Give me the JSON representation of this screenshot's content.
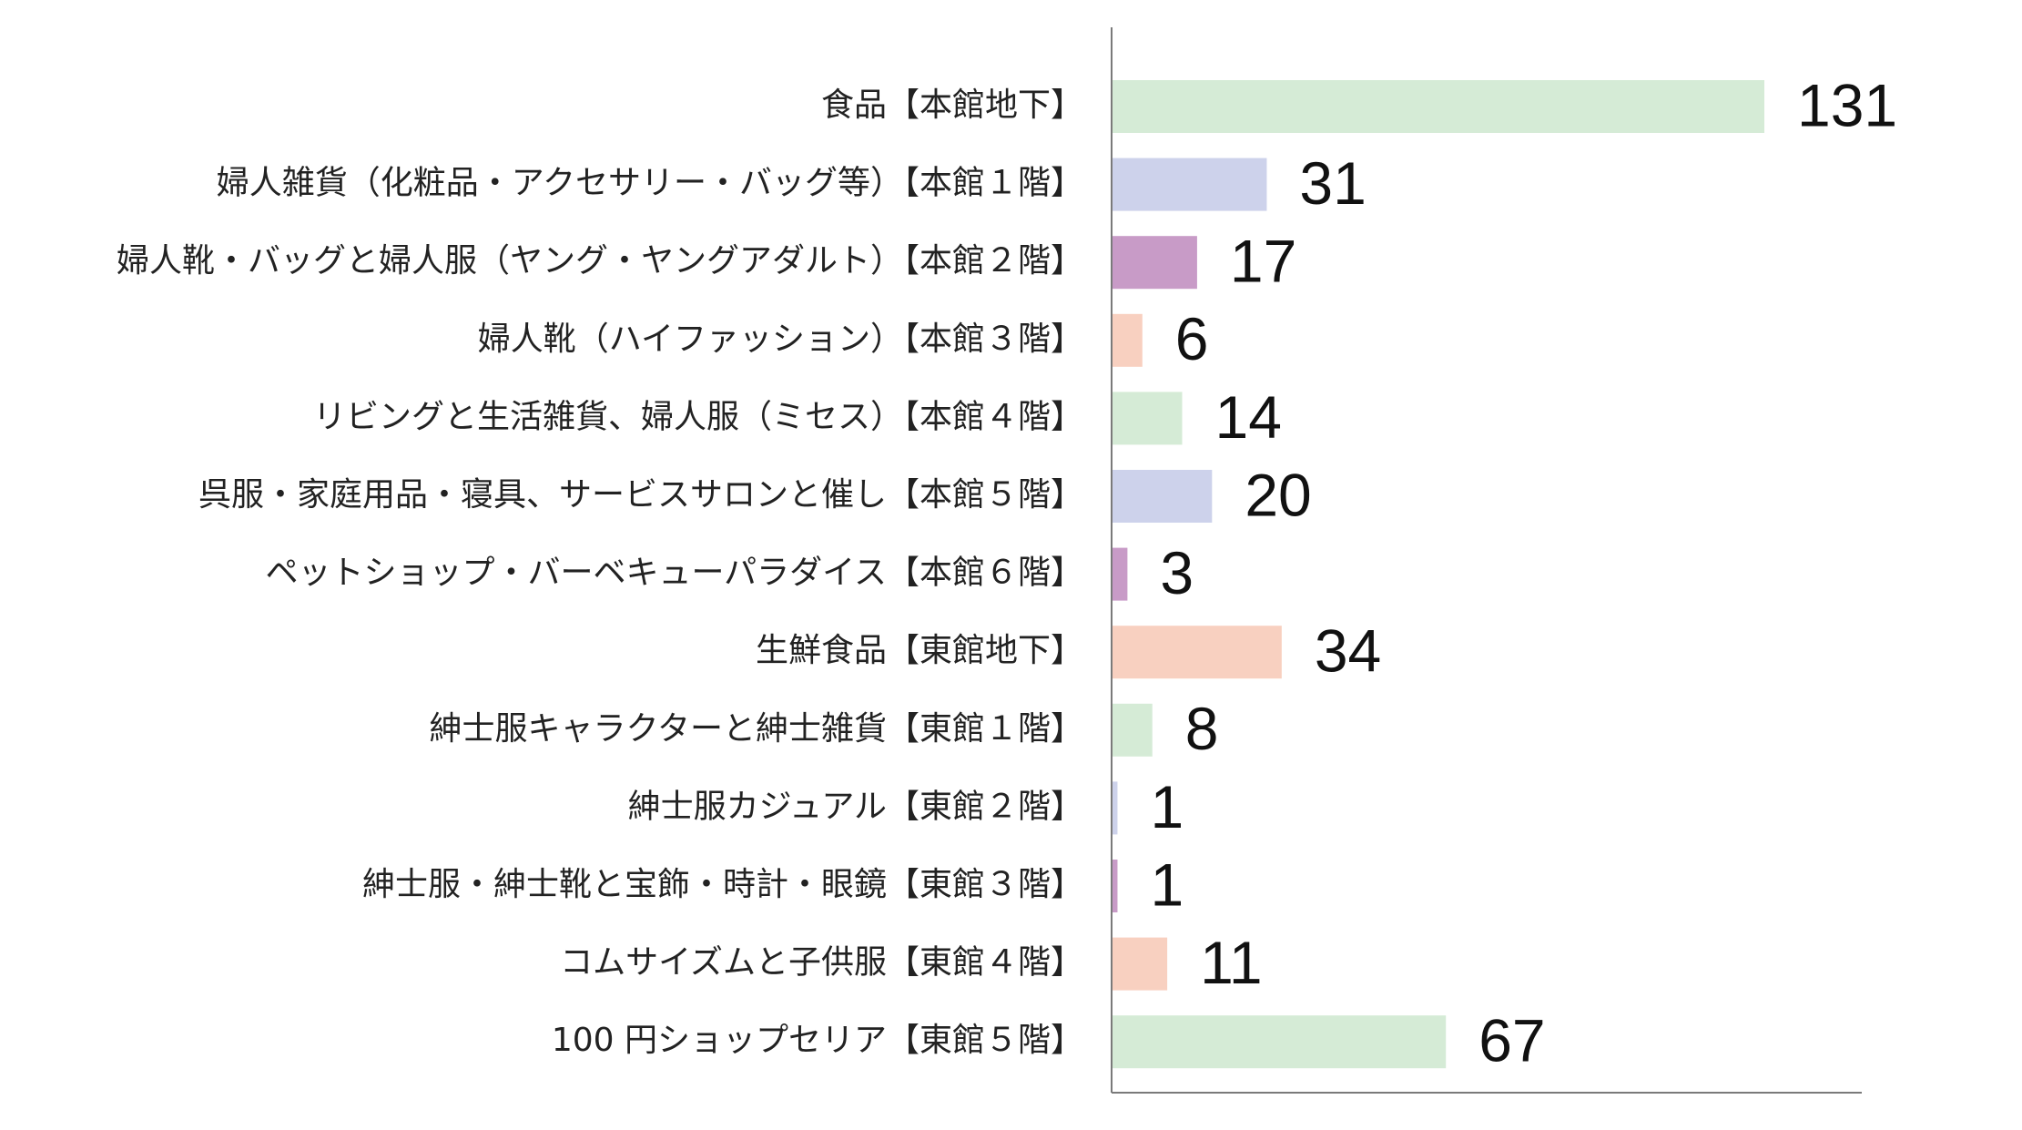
{
  "chart_data": {
    "type": "bar",
    "orientation": "horizontal",
    "title": "",
    "xlabel": "",
    "ylabel": "",
    "grid": false,
    "legend": "none",
    "xlim": [
      0,
      150
    ],
    "categories": [
      "食品【本館地下】",
      "婦人雑貨（化粧品・アクセサリー・バッグ等）【本館１階】",
      "婦人靴・バッグと婦人服（ヤング・ヤングアダルト）【本館２階】",
      "婦人靴（ハイファッション）【本館３階】",
      "リビングと生活雑貨、婦人服（ミセス）【本館４階】",
      "呉服・家庭用品・寝具、サービスサロンと催し【本館５階】",
      "ペットショップ・バーベキューパラダイス【本館６階】",
      "生鮮食品【東館地下】",
      "紳士服キャラクターと紳士雑貨【東館１階】",
      "紳士服カジュアル【東館２階】",
      "紳士服・紳士靴と宝飾・時計・眼鏡【東館３階】",
      "コムサイズムと子供服【東館４階】",
      "100 円ショップセリア【東館５階】"
    ],
    "values": [
      131,
      31,
      17,
      6,
      14,
      20,
      3,
      34,
      8,
      1,
      1,
      11,
      67
    ],
    "value_labels": [
      "131",
      "31",
      "17",
      "6",
      "14",
      "20",
      "3",
      "34",
      "8",
      "1",
      "1",
      "11",
      "67"
    ],
    "bar_colors": [
      "#d5ebd6",
      "#cdd2eb",
      "#c89bc7",
      "#f8d0c0",
      "#d5ebd6",
      "#cdd2eb",
      "#c89bc7",
      "#f8d0c0",
      "#d5ebd6",
      "#cdd2eb",
      "#c89bc7",
      "#f8d0c0",
      "#d5ebd6"
    ]
  }
}
